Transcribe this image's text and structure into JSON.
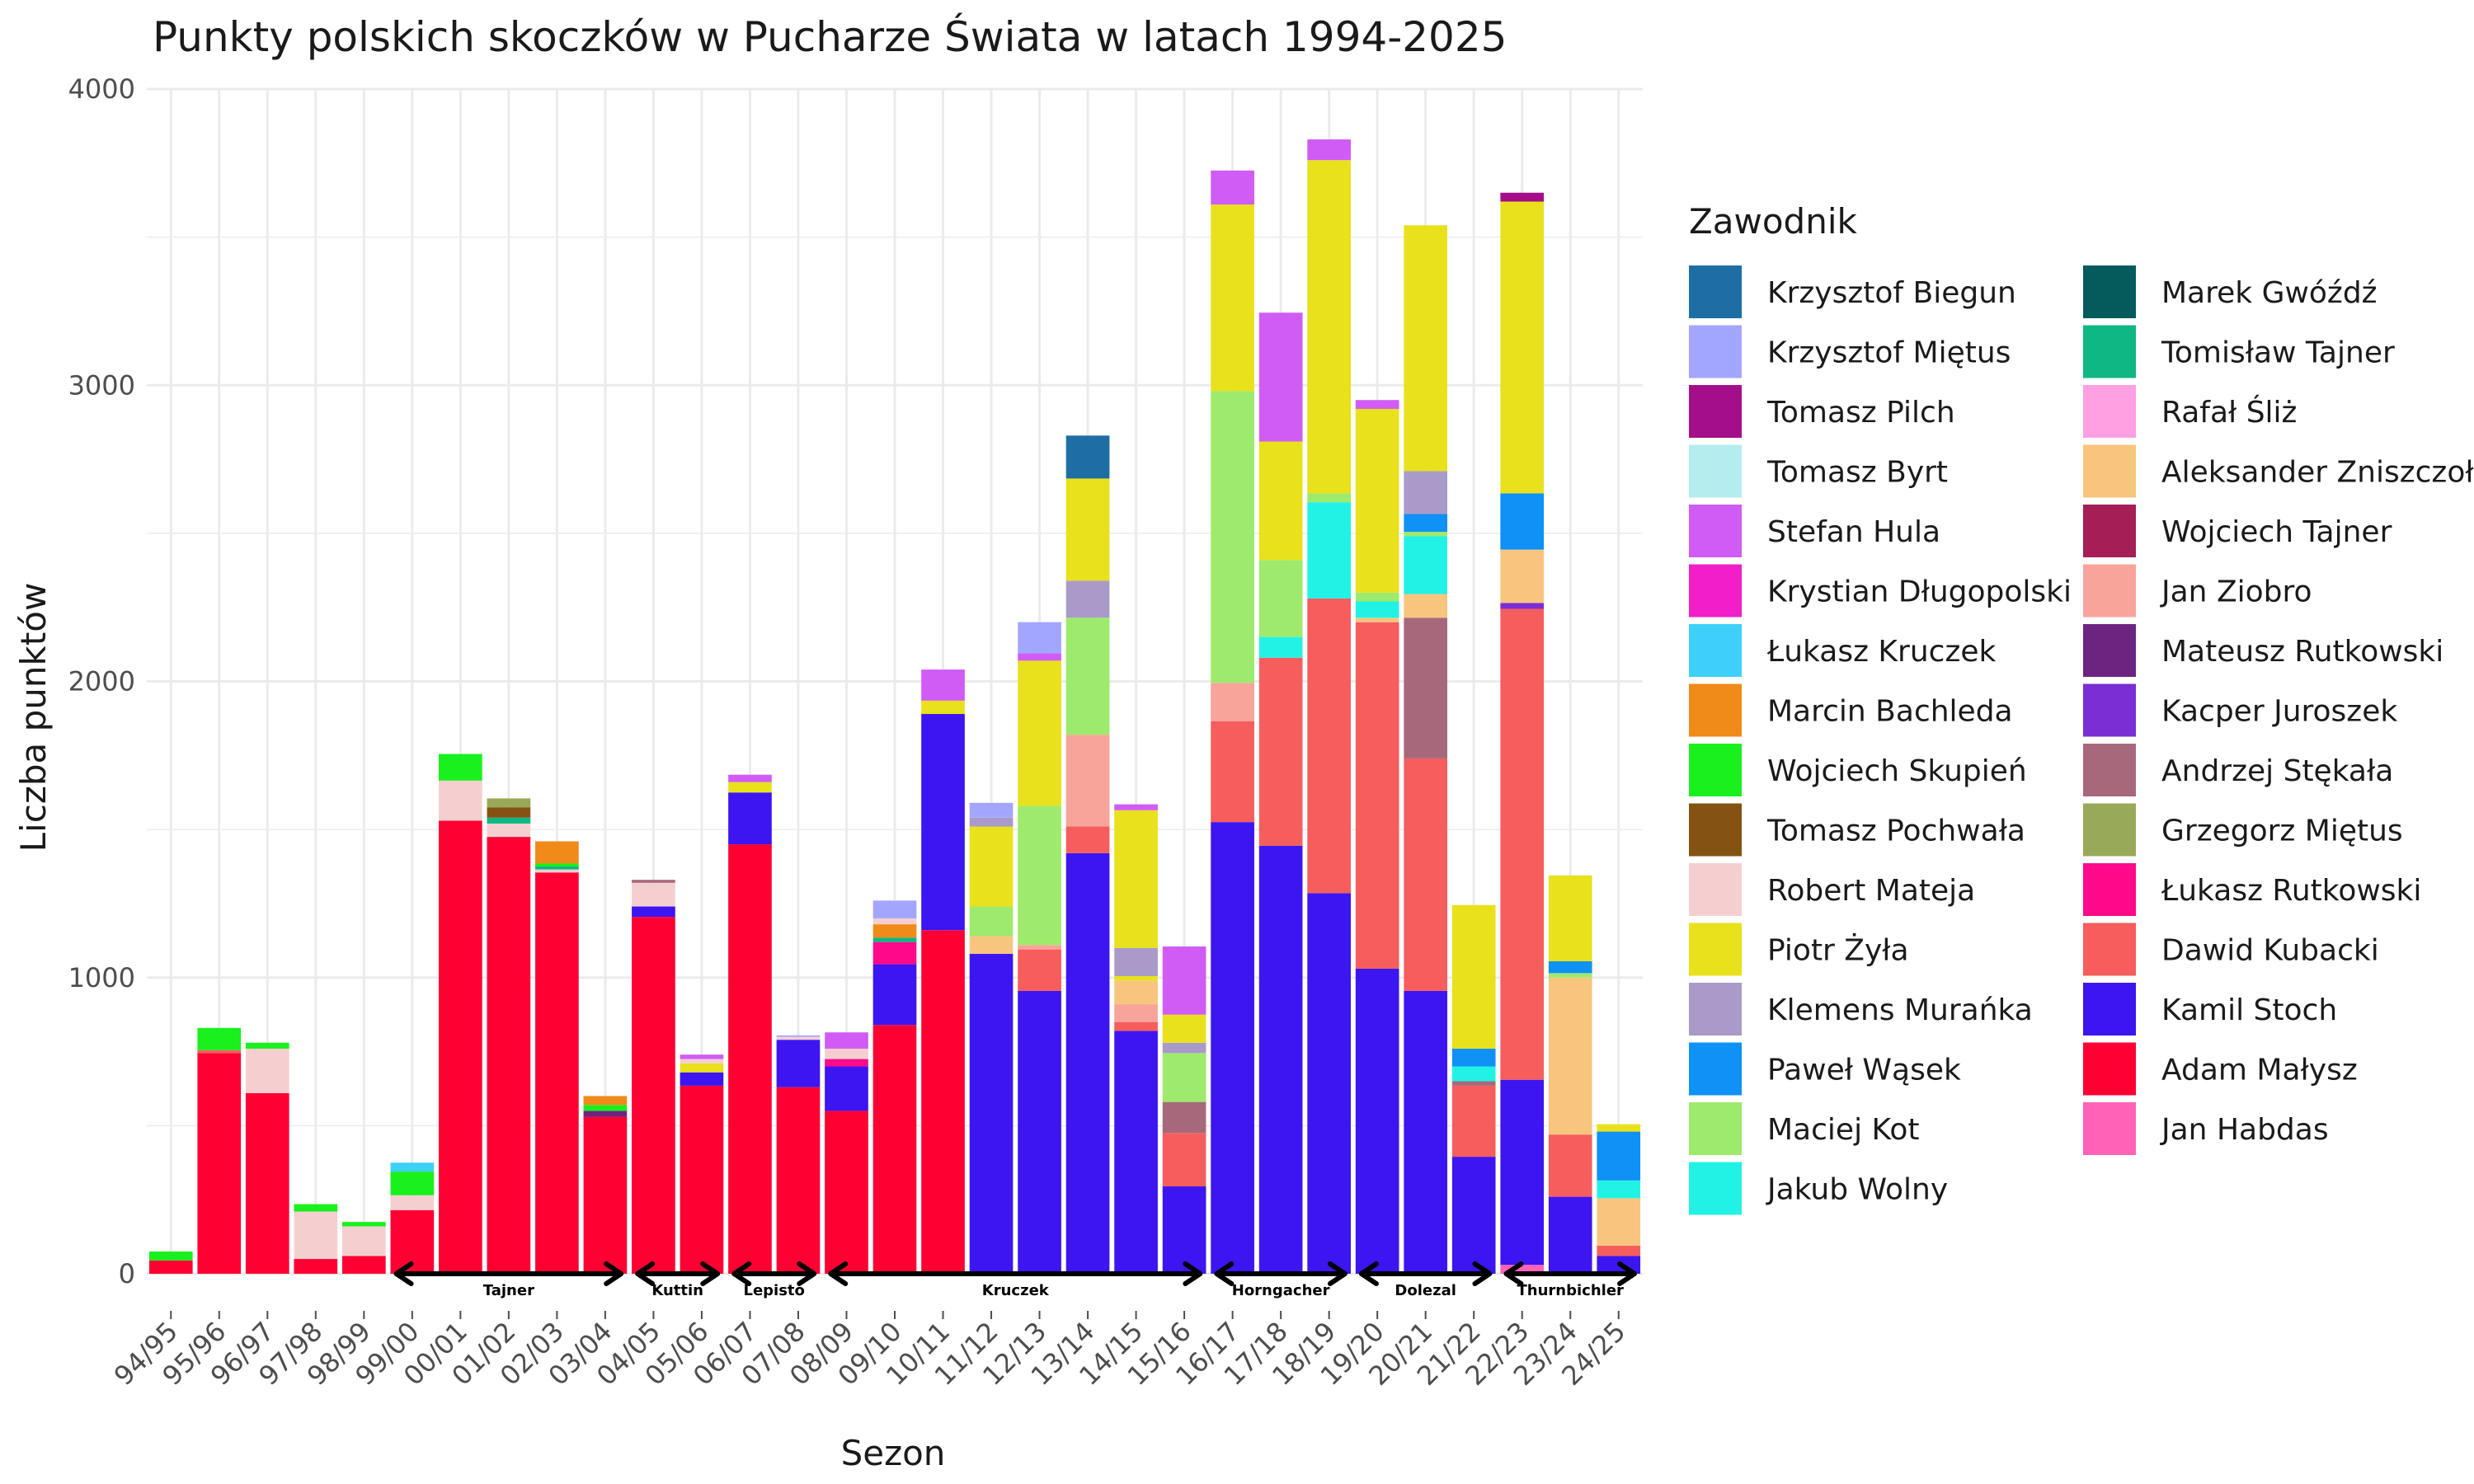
{
  "chart_data": {
    "type": "bar",
    "stacked": true,
    "title": "Punkty polskich skoczków w Pucharze Świata w latach 1994-2025",
    "xlabel": "Sezon",
    "ylabel": "Liczba punktów",
    "ylim": [
      0,
      4000
    ],
    "yticks": [
      0,
      1000,
      2000,
      3000,
      4000
    ],
    "grid": true,
    "legend_position": "right",
    "legend_title": "Zawodnik",
    "categories": [
      "94/95",
      "95/96",
      "96/97",
      "97/98",
      "98/99",
      "99/00",
      "00/01",
      "01/02",
      "02/03",
      "03/04",
      "04/05",
      "05/06",
      "06/07",
      "07/08",
      "08/09",
      "09/10",
      "10/11",
      "11/12",
      "12/13",
      "13/14",
      "14/15",
      "15/16",
      "16/17",
      "17/18",
      "18/19",
      "19/20",
      "20/21",
      "21/22",
      "22/23",
      "23/24",
      "24/25"
    ],
    "legend_order": [
      "Krzysztof Biegun",
      "Krzysztof Miętus",
      "Tomasz Pilch",
      "Tomasz Byrt",
      "Stefan Hula",
      "Krystian Długopolski",
      "Łukasz Kruczek",
      "Marcin Bachleda",
      "Wojciech Skupień",
      "Tomasz Pochwała",
      "Robert Mateja",
      "Piotr Żyła",
      "Klemens Murańka",
      "Paweł Wąsek",
      "Maciej Kot",
      "Jakub Wolny",
      "Marek Gwóźdź",
      "Tomisław Tajner",
      "Rafał Śliż",
      "Aleksander Zniszczoł",
      "Wojciech Tajner",
      "Jan Ziobro",
      "Mateusz Rutkowski",
      "Kacper Juroszek",
      "Andrzej Stękała",
      "Grzegorz Miętus",
      "Łukasz Rutkowski",
      "Dawid Kubacki",
      "Kamil Stoch",
      "Adam Małysz",
      "Jan Habdas"
    ],
    "colors": {
      "Krzysztof Biegun": "#1f6ea3",
      "Krzysztof Miętus": "#a3a6ff",
      "Tomasz Pilch": "#a50e8a",
      "Tomasz Byrt": "#b5ecee",
      "Stefan Hula": "#d05cf5",
      "Krystian Długopolski": "#f21ec8",
      "Łukasz Kruczek": "#3dd0fa",
      "Marcin Bachleda": "#f08a18",
      "Wojciech Skupień": "#1af01e",
      "Tomasz Pochwała": "#845311",
      "Robert Mateja": "#f5cfcf",
      "Piotr Żyła": "#e8e11c",
      "Klemens Murańka": "#a99ac9",
      "Paweł Wąsek": "#0f91f5",
      "Maciej Kot": "#9eea6c",
      "Jakub Wolny": "#22f2e6",
      "Marek Gwóźdź": "#055a5c",
      "Tomisław Tajner": "#0eb783",
      "Rafał Śliż": "#ffa0e3",
      "Aleksander Zniszczoł": "#f8c57f",
      "Wojciech Tajner": "#a51e55",
      "Jan Ziobro": "#f8a49a",
      "Mateusz Rutkowski": "#6c2480",
      "Kacper Juroszek": "#7a2ed3",
      "Andrzej Stękała": "#a8687b",
      "Grzegorz Miętus": "#99a95a",
      "Łukasz Rutkowski": "#ff0a8a",
      "Dawid Kubacki": "#f65d5d",
      "Kamil Stoch": "#3c15f0",
      "Adam Małysz": "#ff0033",
      "Jan Habdas": "#ff62b6"
    },
    "stacks": [
      [
        [
          "Adam Małysz",
          45
        ],
        [
          "Wojciech Skupień",
          30
        ]
      ],
      [
        [
          "Adam Małysz",
          745
        ],
        [
          "Dawid Kubacki",
          10
        ],
        [
          "Wojciech Skupień",
          75
        ]
      ],
      [
        [
          "Adam Małysz",
          610
        ],
        [
          "Robert Mateja",
          150
        ],
        [
          "Wojciech Skupień",
          20
        ]
      ],
      [
        [
          "Adam Małysz",
          50
        ],
        [
          "Robert Mateja",
          160
        ],
        [
          "Wojciech Skupień",
          25
        ]
      ],
      [
        [
          "Adam Małysz",
          60
        ],
        [
          "Robert Mateja",
          100
        ],
        [
          "Wojciech Skupień",
          15
        ]
      ],
      [
        [
          "Adam Małysz",
          215
        ],
        [
          "Robert Mateja",
          50
        ],
        [
          "Wojciech Skupień",
          80
        ],
        [
          "Łukasz Kruczek",
          30
        ]
      ],
      [
        [
          "Adam Małysz",
          1530
        ],
        [
          "Robert Mateja",
          135
        ],
        [
          "Wojciech Skupień",
          90
        ]
      ],
      [
        [
          "Adam Małysz",
          1475
        ],
        [
          "Robert Mateja",
          45
        ],
        [
          "Tomisław Tajner",
          20
        ],
        [
          "Tomasz Pochwała",
          35
        ],
        [
          "Grzegorz Miętus",
          30
        ]
      ],
      [
        [
          "Adam Małysz",
          1355
        ],
        [
          "Robert Mateja",
          10
        ],
        [
          "Tomisław Tajner",
          10
        ],
        [
          "Wojciech Skupień",
          10
        ],
        [
          "Marcin Bachleda",
          75
        ]
      ],
      [
        [
          "Adam Małysz",
          530
        ],
        [
          "Mateusz Rutkowski",
          20
        ],
        [
          "Wojciech Skupień",
          20
        ],
        [
          "Marcin Bachleda",
          30
        ]
      ],
      [
        [
          "Adam Małysz",
          1205
        ],
        [
          "Kamil Stoch",
          35
        ],
        [
          "Robert Mateja",
          80
        ],
        [
          "Andrzej Stękała",
          10
        ]
      ],
      [
        [
          "Adam Małysz",
          635
        ],
        [
          "Kamil Stoch",
          45
        ],
        [
          "Piotr Żyła",
          30
        ],
        [
          "Robert Mateja",
          15
        ],
        [
          "Stefan Hula",
          15
        ]
      ],
      [
        [
          "Adam Małysz",
          1450
        ],
        [
          "Kamil Stoch",
          175
        ],
        [
          "Piotr Żyła",
          35
        ],
        [
          "Stefan Hula",
          25
        ]
      ],
      [
        [
          "Adam Małysz",
          630
        ],
        [
          "Kamil Stoch",
          160
        ],
        [
          "Robert Mateja",
          10
        ],
        [
          "Krzysztof Miętus",
          5
        ]
      ],
      [
        [
          "Adam Małysz",
          550
        ],
        [
          "Kamil Stoch",
          150
        ],
        [
          "Łukasz Rutkowski",
          25
        ],
        [
          "Robert Mateja",
          35
        ],
        [
          "Stefan Hula",
          55
        ]
      ],
      [
        [
          "Adam Małysz",
          840
        ],
        [
          "Kamil Stoch",
          205
        ],
        [
          "Łukasz Rutkowski",
          75
        ],
        [
          "Tomisław Tajner",
          15
        ],
        [
          "Marcin Bachleda",
          45
        ],
        [
          "Robert Mateja",
          20
        ],
        [
          "Krzysztof Miętus",
          60
        ]
      ],
      [
        [
          "Adam Małysz",
          1160
        ],
        [
          "Kamil Stoch",
          730
        ],
        [
          "Piotr Żyła",
          45
        ],
        [
          "Stefan Hula",
          105
        ]
      ],
      [
        [
          "Kamil Stoch",
          1080
        ],
        [
          "Aleksander Zniszczoł",
          60
        ],
        [
          "Maciej Kot",
          100
        ],
        [
          "Piotr Żyła",
          270
        ],
        [
          "Klemens Murańka",
          30
        ],
        [
          "Krzysztof Miętus",
          50
        ]
      ],
      [
        [
          "Kamil Stoch",
          955
        ],
        [
          "Dawid Kubacki",
          140
        ],
        [
          "Jan Ziobro",
          15
        ],
        [
          "Maciej Kot",
          470
        ],
        [
          "Piotr Żyła",
          490
        ],
        [
          "Stefan Hula",
          25
        ],
        [
          "Krzysztof Miętus",
          105
        ]
      ],
      [
        [
          "Kamil Stoch",
          1420
        ],
        [
          "Dawid Kubacki",
          90
        ],
        [
          "Jan Ziobro",
          310
        ],
        [
          "Maciej Kot",
          395
        ],
        [
          "Klemens Murańka",
          125
        ],
        [
          "Piotr Żyła",
          345
        ],
        [
          "Krzysztof Biegun",
          145
        ]
      ],
      [
        [
          "Kamil Stoch",
          820
        ],
        [
          "Dawid Kubacki",
          30
        ],
        [
          "Jan Ziobro",
          60
        ],
        [
          "Aleksander Zniszczoł",
          80
        ],
        [
          "Piotr Żyła",
          15
        ],
        [
          "Klemens Murańka",
          95
        ],
        [
          "Piotr Żyła",
          465
        ],
        [
          "Stefan Hula",
          20
        ]
      ],
      [
        [
          "Kamil Stoch",
          295
        ],
        [
          "Dawid Kubacki",
          180
        ],
        [
          "Andrzej Stękała",
          105
        ],
        [
          "Maciej Kot",
          165
        ],
        [
          "Klemens Murańka",
          35
        ],
        [
          "Piotr Żyła",
          95
        ],
        [
          "Stefan Hula",
          230
        ]
      ],
      [
        [
          "Kamil Stoch",
          1525
        ],
        [
          "Dawid Kubacki",
          340
        ],
        [
          "Jan Ziobro",
          130
        ],
        [
          "Maciej Kot",
          985
        ],
        [
          "Piotr Żyła",
          630
        ],
        [
          "Stefan Hula",
          115
        ]
      ],
      [
        [
          "Kamil Stoch",
          1445
        ],
        [
          "Dawid Kubacki",
          635
        ],
        [
          "Jakub Wolny",
          70
        ],
        [
          "Maciej Kot",
          260
        ],
        [
          "Piotr Żyła",
          400
        ],
        [
          "Stefan Hula",
          435
        ]
      ],
      [
        [
          "Kamil Stoch",
          1285
        ],
        [
          "Dawid Kubacki",
          995
        ],
        [
          "Jakub Wolny",
          325
        ],
        [
          "Maciej Kot",
          30
        ],
        [
          "Piotr Żyła",
          1125
        ],
        [
          "Stefan Hula",
          70
        ]
      ],
      [
        [
          "Kamil Stoch",
          1030
        ],
        [
          "Dawid Kubacki",
          1170
        ],
        [
          "Aleksander Zniszczoł",
          15
        ],
        [
          "Jakub Wolny",
          55
        ],
        [
          "Maciej Kot",
          30
        ],
        [
          "Piotr Żyła",
          620
        ],
        [
          "Stefan Hula",
          30
        ]
      ],
      [
        [
          "Kamil Stoch",
          955
        ],
        [
          "Dawid Kubacki",
          785
        ],
        [
          "Andrzej Stękała",
          475
        ],
        [
          "Aleksander Zniszczoł",
          80
        ],
        [
          "Jakub Wolny",
          195
        ],
        [
          "Maciej Kot",
          15
        ],
        [
          "Paweł Wąsek",
          60
        ],
        [
          "Klemens Murańka",
          145
        ],
        [
          "Piotr Żyła",
          830
        ]
      ],
      [
        [
          "Kamil Stoch",
          395
        ],
        [
          "Dawid Kubacki",
          240
        ],
        [
          "Andrzej Stękała",
          15
        ],
        [
          "Jakub Wolny",
          50
        ],
        [
          "Paweł Wąsek",
          60
        ],
        [
          "Piotr Żyła",
          485
        ]
      ],
      [
        [
          "Jan Habdas",
          30
        ],
        [
          "Kamil Stoch",
          625
        ],
        [
          "Dawid Kubacki",
          1590
        ],
        [
          "Kacper Juroszek",
          20
        ],
        [
          "Aleksander Zniszczoł",
          180
        ],
        [
          "Paweł Wąsek",
          190
        ],
        [
          "Piotr Żyła",
          985
        ],
        [
          "Tomasz Pilch",
          30
        ]
      ],
      [
        [
          "Kamil Stoch",
          260
        ],
        [
          "Dawid Kubacki",
          210
        ],
        [
          "Aleksander Zniszczoł",
          530
        ],
        [
          "Maciej Kot",
          15
        ],
        [
          "Paweł Wąsek",
          40
        ],
        [
          "Piotr Żyła",
          290
        ]
      ],
      [
        [
          "Kamil Stoch",
          60
        ],
        [
          "Dawid Kubacki",
          35
        ],
        [
          "Aleksander Zniszczoł",
          160
        ],
        [
          "Jakub Wolny",
          60
        ],
        [
          "Paweł Wąsek",
          165
        ],
        [
          "Piotr Żyła",
          25
        ]
      ]
    ],
    "coaches": [
      {
        "name": "Tajner",
        "from": "99/00",
        "to": "03/04"
      },
      {
        "name": "Kuttin",
        "from": "04/05",
        "to": "05/06"
      },
      {
        "name": "Lepisto",
        "from": "06/07",
        "to": "07/08"
      },
      {
        "name": "Kruczek",
        "from": "08/09",
        "to": "15/16"
      },
      {
        "name": "Horngacher",
        "from": "16/17",
        "to": "18/19"
      },
      {
        "name": "Dolezal",
        "from": "19/20",
        "to": "21/22"
      },
      {
        "name": "Thurnbichler",
        "from": "22/23",
        "to": "24/25"
      }
    ]
  }
}
